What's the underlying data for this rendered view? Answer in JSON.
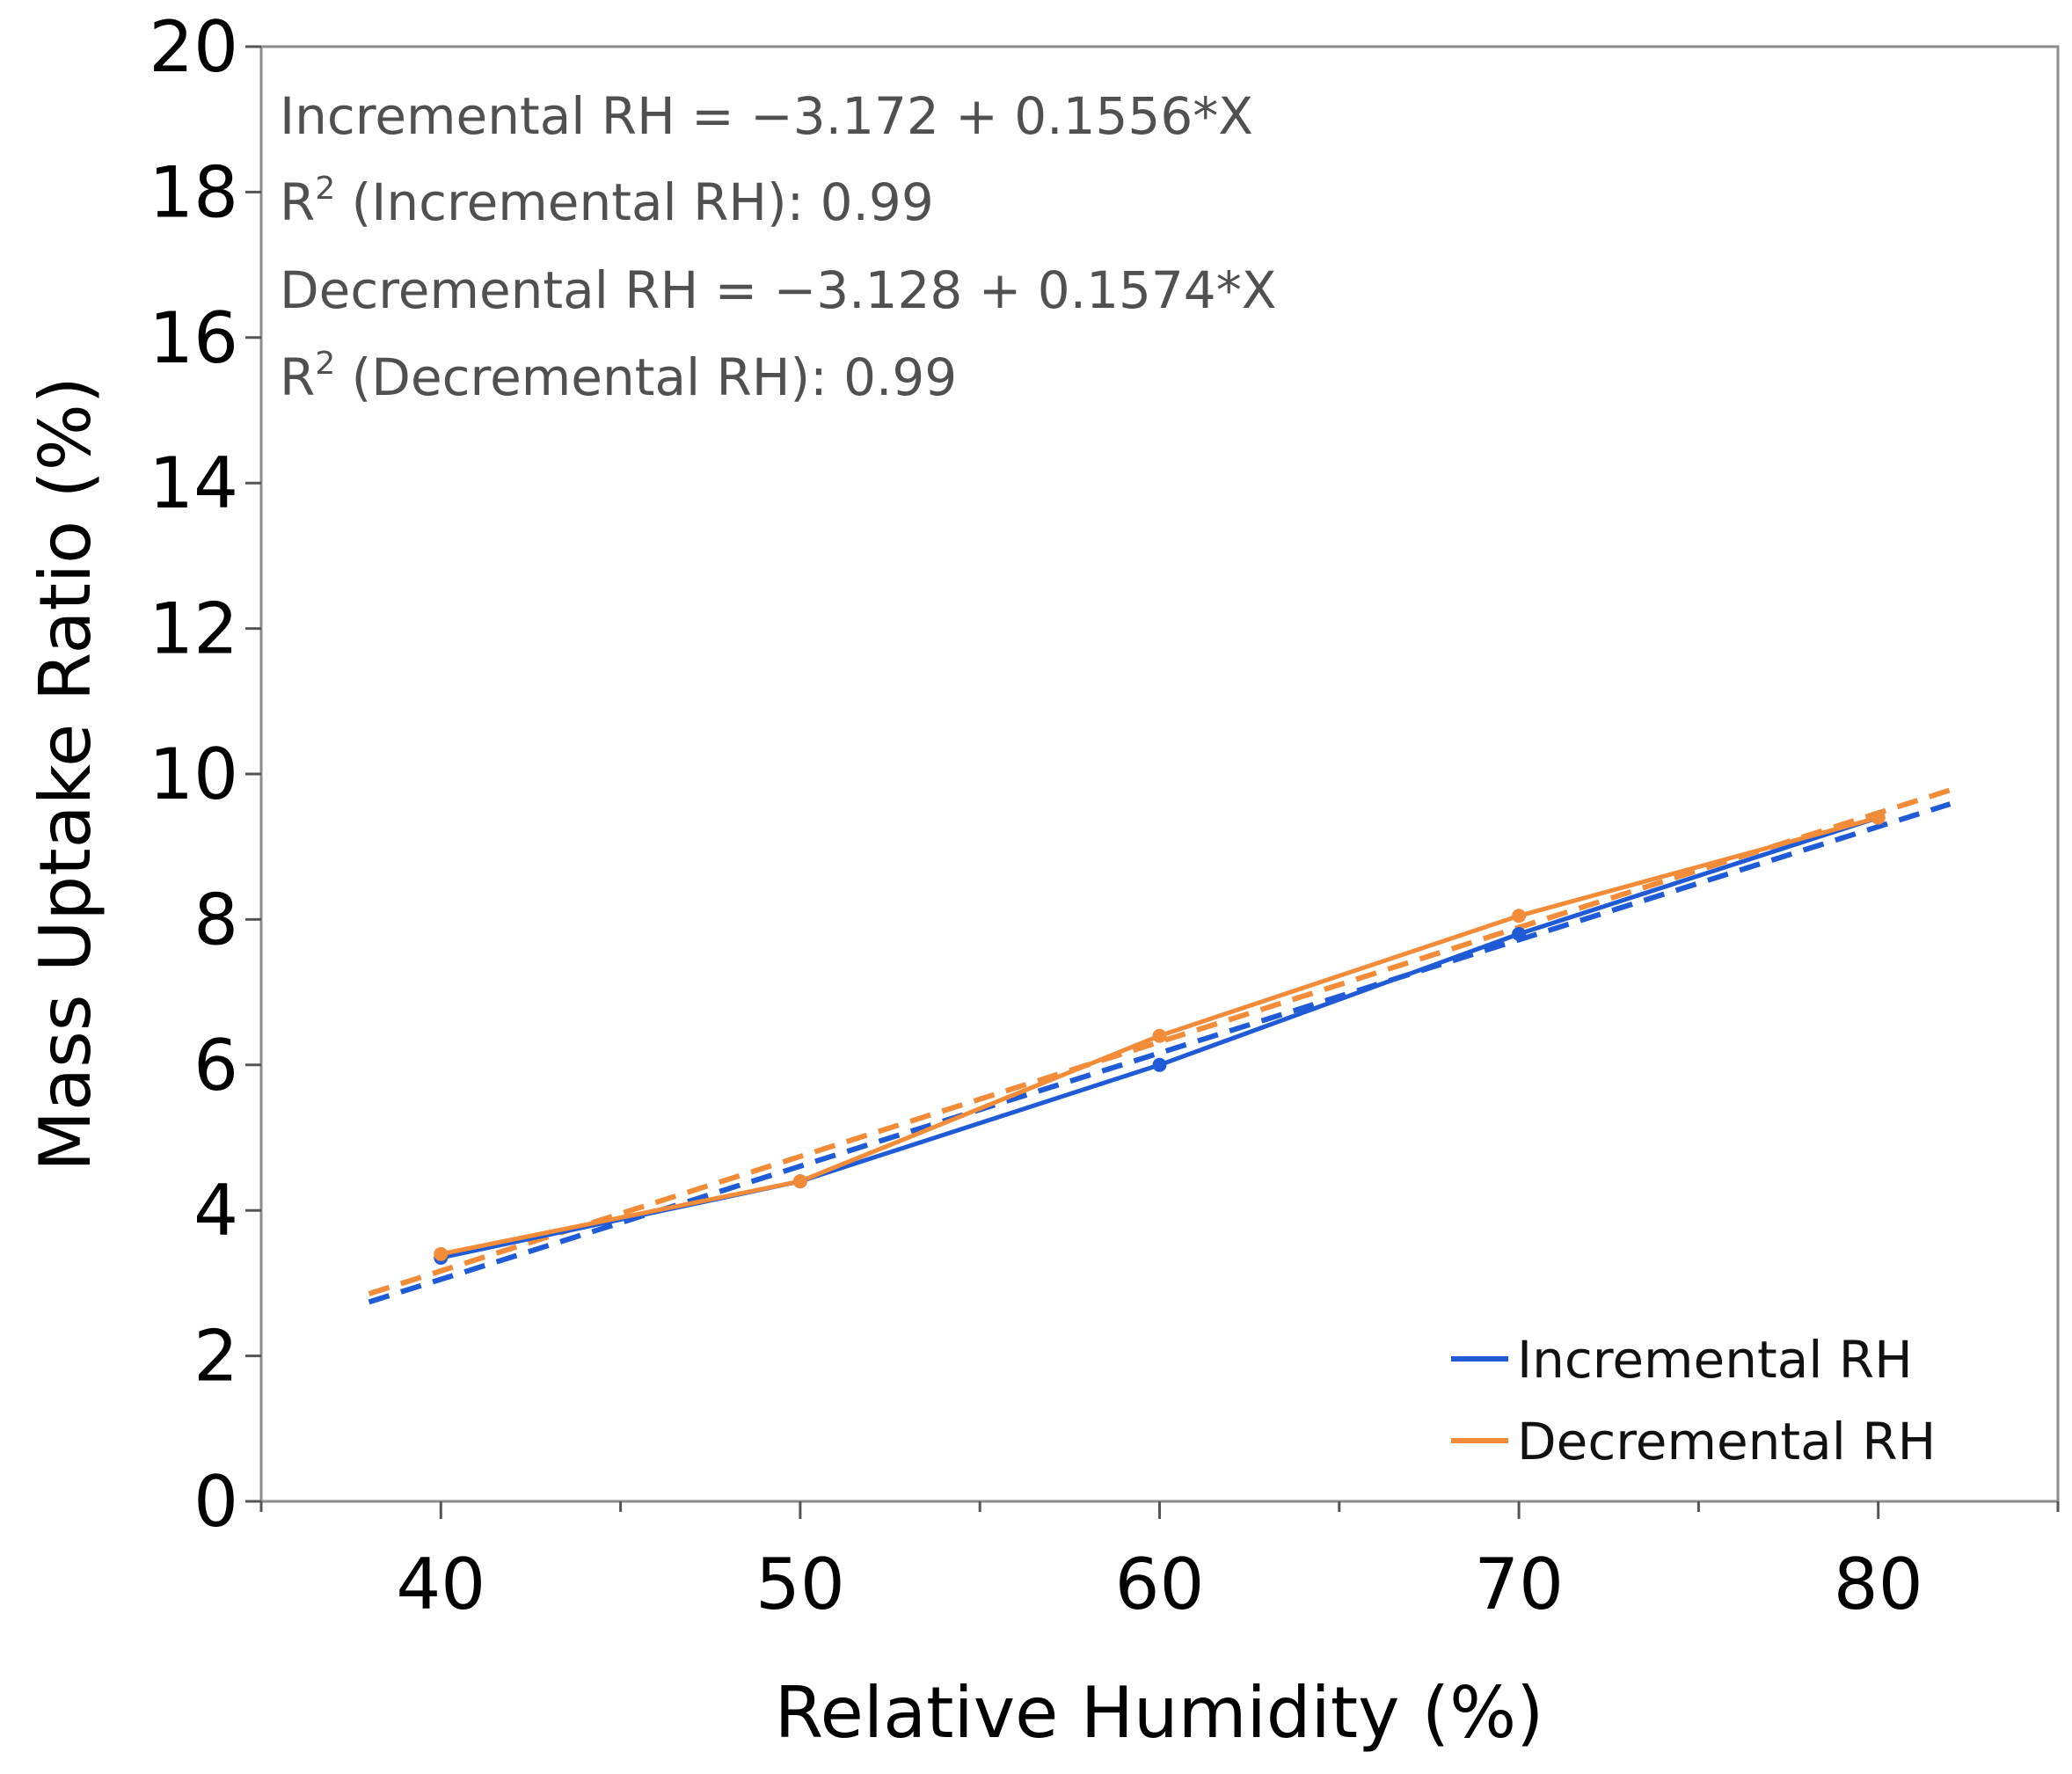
{
  "chart_data": {
    "type": "line",
    "xlabel": "Relative Humidity (%)",
    "ylabel": "Mass Uptake Ratio (%)",
    "xlim": [
      35,
      85
    ],
    "ylim": [
      0,
      20
    ],
    "x_ticks": [
      "40",
      "50",
      "60",
      "70",
      "80"
    ],
    "y_ticks": [
      "0",
      "2",
      "4",
      "6",
      "8",
      "10",
      "12",
      "14",
      "16",
      "18",
      "20"
    ],
    "x": [
      40,
      50,
      60,
      70,
      80
    ],
    "series": [
      {
        "name": "Incremental RH",
        "color": "#1f5bd6",
        "values": [
          3.35,
          4.4,
          6.0,
          7.8,
          9.4
        ],
        "fit": {
          "intercept": -3.172,
          "slope": 0.1556,
          "x_range": [
            38,
            82
          ]
        }
      },
      {
        "name": "Decremental RH",
        "color": "#f28c38",
        "values": [
          3.4,
          4.4,
          6.4,
          8.05,
          9.4
        ],
        "fit": {
          "intercept": -3.128,
          "slope": 0.1574,
          "x_range": [
            38,
            82
          ]
        }
      }
    ],
    "annotations": {
      "eq1": "Incremental RH = −3.172 + 0.1556*X",
      "r2_1_prefix": "R",
      "r2_1_sup": "2",
      "r2_1_rest": " (Incremental RH): 0.99",
      "eq2": "Decremental RH = −3.128 + 0.1574*X",
      "r2_2_prefix": "R",
      "r2_2_sup": "2",
      "r2_2_rest": " (Decremental RH): 0.99"
    },
    "legend": {
      "position": "bottom-right",
      "entries": [
        "Incremental RH",
        "Decremental RH"
      ]
    },
    "grid": false
  }
}
